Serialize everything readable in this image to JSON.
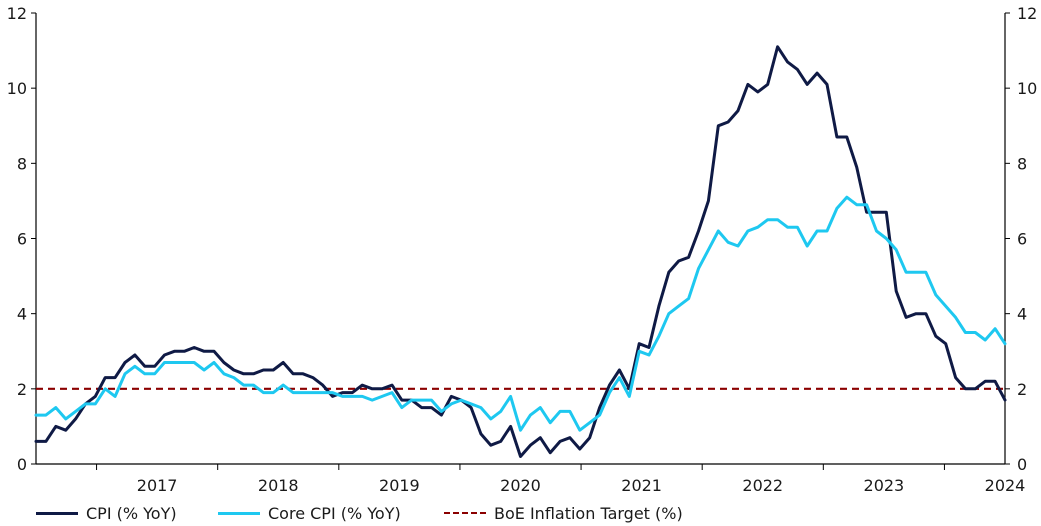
{
  "chart_data": {
    "type": "line",
    "title": "",
    "xlabel": "",
    "ylabel": "",
    "ylim": [
      0,
      12
    ],
    "yticks": [
      "0",
      "2",
      "4",
      "6",
      "8",
      "10",
      "12"
    ],
    "xtick_labels": [
      "2017",
      "2018",
      "2019",
      "2020",
      "2021",
      "2022",
      "2023",
      "2024"
    ],
    "x_start": "2016-07",
    "x_end": "2024-07",
    "grid": false,
    "legend_position": "bottom",
    "series": [
      {
        "name": "CPI (% YoY)",
        "color": "#0f1a45",
        "values": [
          0.6,
          0.6,
          1.0,
          0.9,
          1.2,
          1.6,
          1.8,
          2.3,
          2.3,
          2.7,
          2.9,
          2.6,
          2.6,
          2.9,
          3.0,
          3.0,
          3.1,
          3.0,
          3.0,
          2.7,
          2.5,
          2.4,
          2.4,
          2.5,
          2.5,
          2.7,
          2.4,
          2.4,
          2.3,
          2.1,
          1.8,
          1.9,
          1.9,
          2.1,
          2.0,
          2.0,
          2.1,
          1.7,
          1.7,
          1.5,
          1.5,
          1.3,
          1.8,
          1.7,
          1.5,
          0.8,
          0.5,
          0.6,
          1.0,
          0.2,
          0.5,
          0.7,
          0.3,
          0.6,
          0.7,
          0.4,
          0.7,
          1.5,
          2.1,
          2.5,
          2.0,
          3.2,
          3.1,
          4.2,
          5.1,
          5.4,
          5.5,
          6.2,
          7.0,
          9.0,
          9.1,
          9.4,
          10.1,
          9.9,
          10.1,
          11.1,
          10.7,
          10.5,
          10.1,
          10.4,
          10.1,
          8.7,
          8.7,
          7.9,
          6.7,
          6.7,
          6.7,
          4.6,
          3.9,
          4.0,
          4.0,
          3.4,
          3.2,
          2.3,
          2.0,
          2.0,
          2.2,
          2.2,
          1.7
        ]
      },
      {
        "name": "Core CPI (% YoY)",
        "color": "#1ec8f0",
        "values": [
          1.3,
          1.3,
          1.5,
          1.2,
          1.4,
          1.6,
          1.6,
          2.0,
          1.8,
          2.4,
          2.6,
          2.4,
          2.4,
          2.7,
          2.7,
          2.7,
          2.7,
          2.5,
          2.7,
          2.4,
          2.3,
          2.1,
          2.1,
          1.9,
          1.9,
          2.1,
          1.9,
          1.9,
          1.9,
          1.9,
          1.9,
          1.8,
          1.8,
          1.8,
          1.7,
          1.8,
          1.9,
          1.5,
          1.7,
          1.7,
          1.7,
          1.4,
          1.6,
          1.7,
          1.6,
          1.5,
          1.2,
          1.4,
          1.8,
          0.9,
          1.3,
          1.5,
          1.1,
          1.4,
          1.4,
          0.9,
          1.1,
          1.3,
          1.9,
          2.3,
          1.8,
          3.0,
          2.9,
          3.4,
          4.0,
          4.2,
          4.4,
          5.2,
          5.7,
          6.2,
          5.9,
          5.8,
          6.2,
          6.3,
          6.5,
          6.5,
          6.3,
          6.3,
          5.8,
          6.2,
          6.2,
          6.8,
          7.1,
          6.9,
          6.9,
          6.2,
          6.0,
          5.7,
          5.1,
          5.1,
          5.1,
          4.5,
          4.2,
          3.9,
          3.5,
          3.5,
          3.3,
          3.6,
          3.2
        ]
      },
      {
        "name": "BoE Inflation Target (%)",
        "color": "#8b0000",
        "style": "dashed",
        "values_constant": 2
      }
    ]
  },
  "legend": {
    "cpi": "CPI (% YoY)",
    "core": "Core CPI (% YoY)",
    "target": "BoE Inflation Target (%)"
  }
}
